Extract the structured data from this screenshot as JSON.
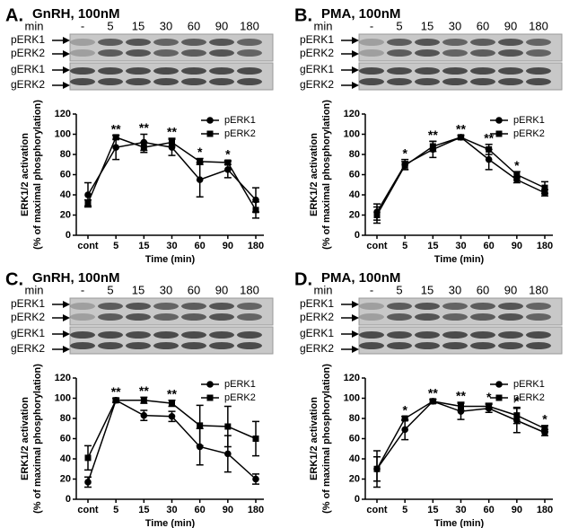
{
  "chart_data": [
    {
      "type": "line",
      "panel": "A.",
      "title": "GnRH, 100nM",
      "blot": {
        "lane_header": "min",
        "lanes": [
          "-",
          "5",
          "15",
          "30",
          "60",
          "90",
          "180"
        ],
        "row_labels": [
          "pERK1",
          "pERK2",
          "gERK1",
          "gERK2"
        ]
      },
      "categories": [
        "cont",
        "5",
        "15",
        "30",
        "60",
        "90",
        "180"
      ],
      "series": [
        {
          "name": "pERK1",
          "color": "#000000",
          "marker": "circle",
          "values": [
            40,
            87,
            92,
            87,
            55,
            65,
            35
          ],
          "error": [
            12,
            12,
            8,
            8,
            17,
            8,
            12
          ]
        },
        {
          "name": "pERK2",
          "color": "#000000",
          "marker": "square",
          "values": [
            32,
            97,
            87,
            92,
            73,
            72,
            25
          ],
          "error": [
            3,
            2,
            5,
            4,
            3,
            2,
            8
          ]
        }
      ],
      "annotations": [
        {
          "x": "5",
          "text": "**"
        },
        {
          "x": "15",
          "text": "**"
        },
        {
          "x": "30",
          "text": "**"
        },
        {
          "x": "60",
          "text": "*"
        },
        {
          "x": "90",
          "text": "*"
        }
      ],
      "ylabel": [
        "ERK1/2 activation",
        "(% of maximal phosphorylation)"
      ],
      "xlabel": "Time (min)",
      "ylim": [
        0,
        120
      ],
      "yticks": [
        0,
        20,
        40,
        60,
        80,
        100,
        120
      ],
      "legend": "upper right"
    },
    {
      "type": "line",
      "panel": "B.",
      "title": "PMA, 100nM",
      "blot": {
        "lane_header": "min",
        "lanes": [
          "-",
          "5",
          "15",
          "30",
          "60",
          "90",
          "180"
        ],
        "row_labels": [
          "pERK1",
          "pERK2",
          "gERK1",
          "gERK2"
        ]
      },
      "categories": [
        "cont",
        "5",
        "15",
        "30",
        "60",
        "90",
        "180"
      ],
      "series": [
        {
          "name": "pERK1",
          "color": "#000000",
          "marker": "circle",
          "values": [
            23,
            70,
            85,
            97,
            75,
            55,
            42
          ],
          "error": [
            8,
            5,
            8,
            2,
            10,
            3,
            3
          ]
        },
        {
          "name": "pERK2",
          "color": "#000000",
          "marker": "square",
          "values": [
            20,
            69,
            88,
            97,
            85,
            60,
            47
          ],
          "error": [
            8,
            4,
            5,
            2,
            5,
            3,
            6
          ]
        }
      ],
      "annotations": [
        {
          "x": "5",
          "text": "*"
        },
        {
          "x": "15",
          "text": "**"
        },
        {
          "x": "30",
          "text": "**"
        },
        {
          "x": "60",
          "text": "**"
        },
        {
          "x": "90",
          "text": "*"
        }
      ],
      "ylabel": [
        "ERK1/2 activation",
        "(% of maximal phosphorylation)"
      ],
      "xlabel": "Time (min)",
      "ylim": [
        0,
        120
      ],
      "yticks": [
        0,
        20,
        40,
        60,
        80,
        100,
        120
      ],
      "legend": "upper right"
    },
    {
      "type": "line",
      "panel": "C.",
      "title": "GnRH, 100nM",
      "blot": {
        "lane_header": "min",
        "lanes": [
          "-",
          "5",
          "15",
          "30",
          "60",
          "90",
          "180"
        ],
        "row_labels": [
          "pERK1",
          "pERK2",
          "gERK1",
          "gERK2"
        ]
      },
      "categories": [
        "cont",
        "5",
        "15",
        "30",
        "60",
        "90",
        "180"
      ],
      "series": [
        {
          "name": "pERK1",
          "color": "#000000",
          "marker": "circle",
          "values": [
            17,
            98,
            83,
            82,
            52,
            45,
            20
          ],
          "error": [
            5,
            2,
            5,
            5,
            18,
            18,
            5
          ]
        },
        {
          "name": "pERK2",
          "color": "#000000",
          "marker": "square",
          "values": [
            41,
            98,
            98,
            95,
            73,
            72,
            60
          ],
          "error": [
            12,
            2,
            3,
            3,
            20,
            20,
            17
          ]
        }
      ],
      "annotations": [
        {
          "x": "5",
          "text": "**"
        },
        {
          "x": "15",
          "text": "**"
        },
        {
          "x": "30",
          "text": "**"
        }
      ],
      "ylabel": [
        "ERK1/2 activation",
        "(% of maximal phosphorylation)"
      ],
      "xlabel": "Time (min)",
      "ylim": [
        0,
        120
      ],
      "yticks": [
        0,
        20,
        40,
        60,
        80,
        100,
        120
      ],
      "legend": "upper right"
    },
    {
      "type": "line",
      "panel": "D.",
      "title": "PMA, 100nM",
      "blot": {
        "lane_header": "min",
        "lanes": [
          "-",
          "5",
          "15",
          "30",
          "60",
          "90",
          "180"
        ],
        "row_labels": [
          "pERK1",
          "pERK2",
          "gERK1",
          "gERK2"
        ]
      },
      "categories": [
        "cont",
        "5",
        "15",
        "30",
        "60",
        "90",
        "180"
      ],
      "series": [
        {
          "name": "pERK1",
          "color": "#000000",
          "marker": "circle",
          "values": [
            30,
            69,
            97,
            87,
            90,
            78,
            66
          ],
          "error": [
            18,
            10,
            2,
            8,
            4,
            12,
            3
          ]
        },
        {
          "name": "pERK2",
          "color": "#000000",
          "marker": "square",
          "values": [
            30,
            80,
            97,
            92,
            92,
            83,
            70
          ],
          "error": [
            12,
            2,
            2,
            4,
            3,
            8,
            3
          ]
        }
      ],
      "annotations": [
        {
          "x": "5",
          "text": "*"
        },
        {
          "x": "15",
          "text": "**"
        },
        {
          "x": "30",
          "text": "**"
        },
        {
          "x": "60",
          "text": "*"
        },
        {
          "x": "90",
          "text": "*"
        },
        {
          "x": "180",
          "text": "*"
        }
      ],
      "ylabel": [
        "ERK1/2 activation",
        "(% of maximal phosphorylation)"
      ],
      "xlabel": "Time (min)",
      "ylim": [
        0,
        120
      ],
      "yticks": [
        0,
        20,
        40,
        60,
        80,
        100,
        120
      ],
      "legend": "upper right"
    }
  ]
}
